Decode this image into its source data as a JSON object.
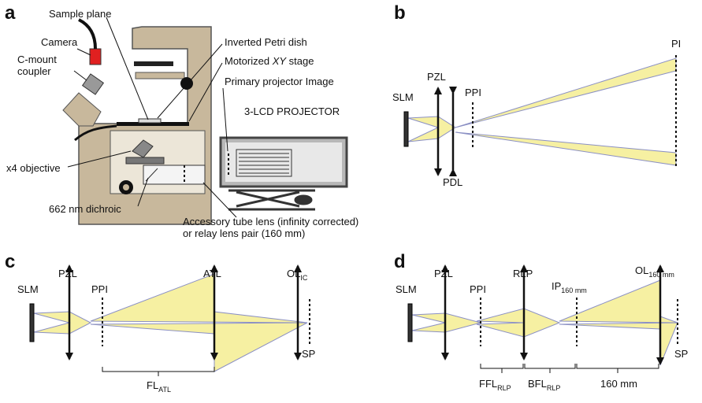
{
  "panel_a": {
    "label": "a",
    "sample_plane": "Sample plane",
    "camera": "Camera",
    "c_mount_coupler": [
      "C-mount",
      "coupler"
    ],
    "inverted_petri_dish": "Inverted Petri dish",
    "motorized_stage": [
      "Motorized ",
      "XY",
      " stage"
    ],
    "primary_projector_image": "Primary projector Image",
    "projector": "3-LCD PROJECTOR",
    "objective": "x4 objective",
    "dichroic": "662 nm dichroic",
    "tube_lens": [
      "Accessory tube lens (infinity corrected)",
      "or relay lens pair (160 mm)"
    ]
  },
  "panel_b": {
    "label": "b",
    "slm": "SLM",
    "pzl": "PZL",
    "ppi": "PPI",
    "pdl": "PDL",
    "pi": "PI"
  },
  "panel_c": {
    "label": "c",
    "slm": "SLM",
    "pzl": "PZL",
    "ppi": "PPI",
    "atl": "ATL",
    "ol": {
      "main": "OL",
      "sub": "IC"
    },
    "sp": "SP",
    "fl": {
      "main": "FL",
      "sub": "ATL"
    }
  },
  "panel_d": {
    "label": "d",
    "slm": "SLM",
    "pzl": "PZL",
    "ppi": "PPI",
    "rlp": "RLP",
    "ip": {
      "main": "IP",
      "sub": "160 mm"
    },
    "ol": {
      "main": "OL",
      "sub": "160 mm"
    },
    "sp": "SP",
    "ffl": {
      "main": "FFL",
      "sub": "RLP"
    },
    "bfl": {
      "main": "BFL",
      "sub": "RLP"
    },
    "dist": "160 mm"
  }
}
